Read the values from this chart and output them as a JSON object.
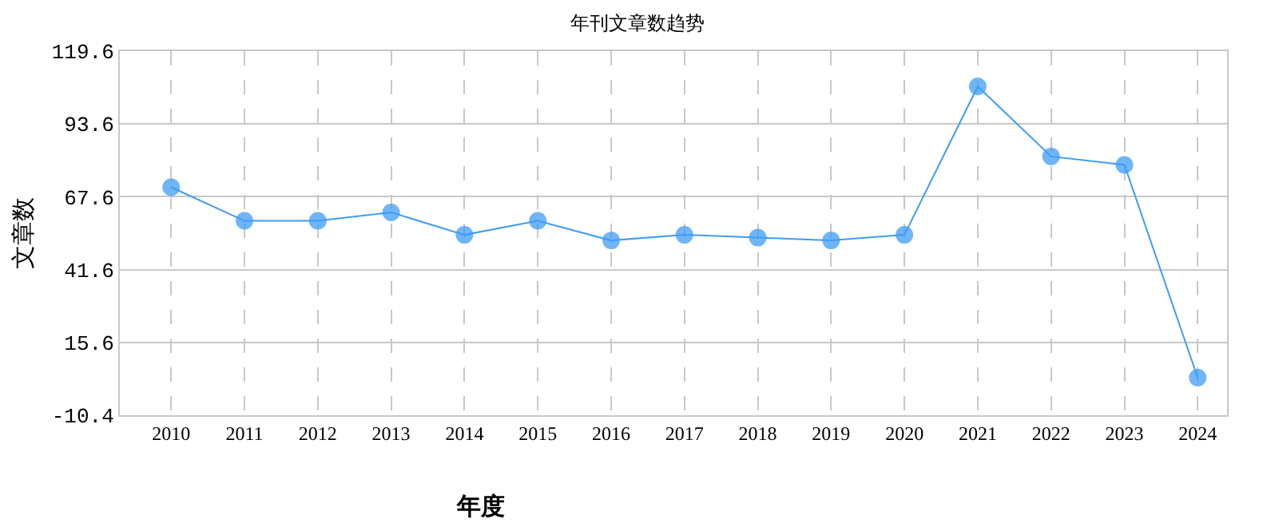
{
  "chart_data": {
    "type": "line",
    "title": "年刊文章数趋势",
    "xlabel": "年度",
    "ylabel": "文章数",
    "categories": [
      "2010",
      "2011",
      "2012",
      "2013",
      "2014",
      "2015",
      "2016",
      "2017",
      "2018",
      "2019",
      "2020",
      "2021",
      "2022",
      "2023",
      "2024"
    ],
    "series": [
      {
        "color": "#3f9cf5",
        "values": [
          71,
          59,
          59,
          62,
          54,
          59,
          52,
          54,
          53,
          52,
          54,
          107,
          82,
          79,
          3
        ]
      }
    ],
    "ylim": [
      -10.4,
      119.6
    ],
    "yticks": [
      -10.4,
      15.6,
      41.6,
      67.6,
      93.6,
      119.6
    ],
    "grid": true,
    "legend": false,
    "marker": "circle",
    "line_style": "solid"
  }
}
